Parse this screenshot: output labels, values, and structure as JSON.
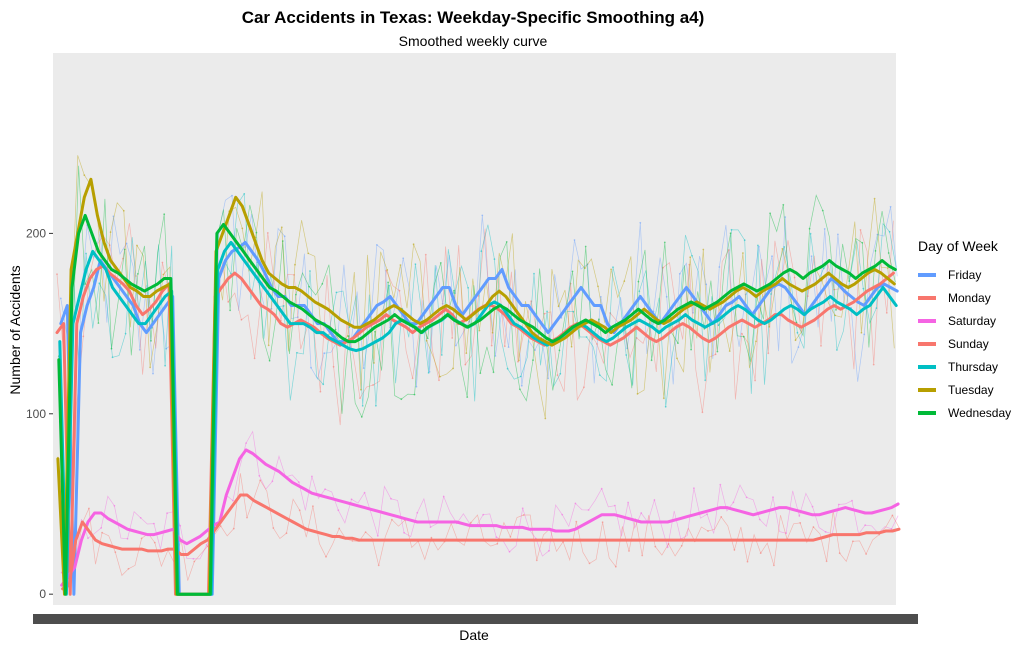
{
  "chart_data": {
    "type": "line",
    "title": "Car Accidents in Texas: Weekday-Specific Smoothing a4)",
    "subtitle": "Smoothed weekly curve",
    "xlabel": "Date",
    "ylabel": "Number of Accidents",
    "ylim": [
      -6,
      300
    ],
    "y_ticks": [
      0,
      100,
      200
    ],
    "x_tick_labels_overlapping": true,
    "grid": false,
    "background": "#EBEBEB",
    "legend": {
      "title": "Day of Week",
      "position": "right"
    },
    "num_weeks": 128,
    "series": [
      {
        "name": "Friday",
        "color": "#619CFF",
        "values": [
          150,
          160,
          0,
          145,
          160,
          170,
          185,
          180,
          175,
          170,
          165,
          160,
          150,
          145,
          150,
          155,
          160,
          165,
          0,
          0,
          0,
          0,
          0,
          0,
          175,
          185,
          190,
          192,
          195,
          190,
          185,
          178,
          170,
          165,
          165,
          160,
          160,
          160,
          155,
          150,
          150,
          145,
          140,
          140,
          140,
          145,
          150,
          155,
          160,
          162,
          165,
          160,
          155,
          150,
          150,
          155,
          160,
          165,
          170,
          170,
          160,
          155,
          160,
          165,
          170,
          175,
          175,
          180,
          170,
          165,
          160,
          160,
          155,
          150,
          145,
          150,
          155,
          160,
          165,
          170,
          165,
          160,
          160,
          150,
          145,
          150,
          155,
          160,
          165,
          160,
          155,
          150,
          155,
          160,
          165,
          170,
          165,
          160,
          155,
          150,
          155,
          160,
          162,
          165,
          160,
          155,
          160,
          165,
          170,
          172,
          170,
          165,
          160,
          155,
          160,
          165,
          170,
          175,
          172,
          168,
          165,
          162,
          160,
          165,
          170,
          172,
          170,
          168
        ]
      },
      {
        "name": "Monday",
        "color": "#F8766D",
        "values": [
          145,
          150,
          0,
          150,
          165,
          175,
          180,
          182,
          178,
          175,
          172,
          168,
          160,
          155,
          158,
          162,
          168,
          172,
          0,
          0,
          0,
          0,
          0,
          0,
          165,
          170,
          175,
          178,
          175,
          170,
          165,
          160,
          158,
          155,
          150,
          148,
          150,
          152,
          150,
          148,
          145,
          142,
          140,
          138,
          140,
          142,
          145,
          148,
          150,
          152,
          155,
          152,
          150,
          148,
          145,
          148,
          150,
          152,
          155,
          158,
          155,
          150,
          152,
          155,
          158,
          160,
          160,
          158,
          155,
          150,
          148,
          145,
          142,
          140,
          138,
          140,
          142,
          145,
          148,
          150,
          148,
          145,
          142,
          140,
          138,
          140,
          142,
          145,
          148,
          145,
          142,
          140,
          142,
          145,
          148,
          150,
          148,
          145,
          142,
          140,
          142,
          145,
          148,
          150,
          152,
          150,
          148,
          150,
          152,
          155,
          155,
          152,
          150,
          148,
          150,
          152,
          155,
          158,
          160,
          158,
          160,
          162,
          165,
          168,
          170,
          172,
          175,
          178
        ]
      },
      {
        "name": "Saturday",
        "color": "#F564E3",
        "values": [
          5,
          10,
          15,
          30,
          40,
          45,
          45,
          42,
          40,
          38,
          36,
          35,
          34,
          33,
          33,
          34,
          35,
          36,
          30,
          28,
          30,
          32,
          35,
          38,
          40,
          55,
          65,
          75,
          80,
          78,
          75,
          72,
          70,
          68,
          65,
          62,
          60,
          58,
          56,
          55,
          54,
          53,
          52,
          51,
          50,
          49,
          48,
          47,
          46,
          45,
          44,
          43,
          42,
          41,
          40,
          40,
          40,
          40,
          40,
          40,
          40,
          39,
          38,
          38,
          38,
          38,
          38,
          37,
          37,
          37,
          37,
          36,
          36,
          36,
          36,
          35,
          35,
          35,
          36,
          38,
          40,
          42,
          44,
          44,
          44,
          43,
          42,
          41,
          40,
          40,
          40,
          40,
          40,
          41,
          42,
          43,
          44,
          45,
          46,
          47,
          48,
          48,
          47,
          46,
          45,
          44,
          45,
          46,
          47,
          48,
          48,
          47,
          46,
          45,
          44,
          44,
          45,
          46,
          47,
          48,
          47,
          46,
          45,
          45,
          46,
          47,
          48,
          50
        ]
      },
      {
        "name": "Sunday",
        "color": "#F8766D",
        "values": [
          3,
          5,
          30,
          40,
          35,
          30,
          28,
          27,
          26,
          25,
          25,
          25,
          25,
          24,
          24,
          24,
          25,
          25,
          22,
          22,
          25,
          28,
          30,
          35,
          40,
          45,
          50,
          55,
          55,
          52,
          50,
          48,
          46,
          44,
          42,
          40,
          38,
          36,
          35,
          34,
          33,
          32,
          32,
          31,
          31,
          30,
          30,
          30,
          30,
          30,
          30,
          30,
          30,
          30,
          30,
          30,
          30,
          30,
          30,
          30,
          30,
          30,
          30,
          30,
          30,
          30,
          30,
          30,
          30,
          30,
          30,
          30,
          30,
          30,
          30,
          30,
          30,
          30,
          30,
          30,
          30,
          30,
          30,
          30,
          30,
          30,
          30,
          30,
          30,
          30,
          30,
          30,
          30,
          30,
          30,
          30,
          30,
          30,
          30,
          30,
          30,
          30,
          30,
          30,
          30,
          30,
          30,
          30,
          30,
          30,
          30,
          30,
          30,
          30,
          30,
          31,
          32,
          33,
          33,
          33,
          33,
          33,
          34,
          34,
          34,
          35,
          35,
          36
        ]
      },
      {
        "name": "Thursday",
        "color": "#00BFC4",
        "values": [
          140,
          0,
          150,
          165,
          180,
          190,
          185,
          180,
          170,
          165,
          160,
          155,
          150,
          150,
          155,
          160,
          165,
          168,
          0,
          0,
          0,
          0,
          0,
          0,
          180,
          190,
          195,
          190,
          185,
          180,
          175,
          170,
          165,
          160,
          155,
          150,
          150,
          150,
          148,
          145,
          145,
          142,
          140,
          138,
          136,
          135,
          136,
          138,
          140,
          142,
          145,
          150,
          152,
          150,
          148,
          145,
          148,
          150,
          152,
          155,
          152,
          150,
          148,
          150,
          155,
          160,
          162,
          160,
          155,
          150,
          148,
          145,
          142,
          140,
          138,
          140,
          142,
          145,
          148,
          150,
          148,
          145,
          142,
          140,
          142,
          145,
          148,
          150,
          152,
          150,
          148,
          145,
          148,
          150,
          152,
          155,
          152,
          150,
          148,
          150,
          152,
          155,
          158,
          160,
          158,
          155,
          152,
          150,
          152,
          155,
          158,
          160,
          158,
          155,
          158,
          160,
          162,
          165,
          162,
          160,
          158,
          155,
          158,
          160,
          165,
          170,
          165,
          160
        ]
      },
      {
        "name": "Tuesday",
        "color": "#B79F00",
        "values": [
          75,
          0,
          180,
          200,
          220,
          230,
          210,
          195,
          185,
          180,
          175,
          170,
          168,
          165,
          165,
          168,
          170,
          172,
          0,
          0,
          0,
          0,
          0,
          0,
          190,
          200,
          210,
          220,
          215,
          205,
          195,
          185,
          178,
          175,
          172,
          170,
          170,
          168,
          165,
          162,
          160,
          158,
          155,
          152,
          150,
          148,
          148,
          150,
          152,
          155,
          158,
          160,
          158,
          155,
          152,
          150,
          152,
          155,
          158,
          160,
          158,
          155,
          152,
          155,
          158,
          160,
          165,
          168,
          165,
          160,
          155,
          150,
          145,
          142,
          140,
          138,
          140,
          142,
          145,
          148,
          150,
          152,
          150,
          148,
          145,
          148,
          150,
          152,
          155,
          158,
          155,
          152,
          150,
          152,
          155,
          158,
          160,
          162,
          160,
          158,
          160,
          162,
          165,
          168,
          170,
          168,
          165,
          168,
          170,
          172,
          175,
          172,
          170,
          168,
          170,
          172,
          175,
          178,
          175,
          172,
          170,
          172,
          175,
          178,
          180,
          178,
          175,
          172
        ]
      },
      {
        "name": "Wednesday",
        "color": "#00BA38",
        "values": [
          130,
          0,
          170,
          200,
          210,
          200,
          190,
          185,
          180,
          178,
          175,
          172,
          170,
          168,
          170,
          172,
          175,
          175,
          0,
          0,
          0,
          0,
          0,
          0,
          200,
          205,
          200,
          195,
          190,
          185,
          180,
          175,
          170,
          168,
          165,
          162,
          160,
          158,
          155,
          152,
          150,
          148,
          145,
          142,
          140,
          140,
          142,
          145,
          148,
          150,
          152,
          155,
          152,
          150,
          148,
          145,
          148,
          150,
          152,
          155,
          152,
          150,
          148,
          150,
          152,
          155,
          158,
          160,
          158,
          155,
          152,
          150,
          148,
          145,
          142,
          140,
          142,
          145,
          148,
          150,
          152,
          150,
          148,
          145,
          148,
          150,
          152,
          155,
          158,
          155,
          152,
          150,
          152,
          155,
          158,
          160,
          162,
          160,
          158,
          160,
          162,
          165,
          168,
          170,
          172,
          170,
          168,
          170,
          172,
          175,
          178,
          180,
          178,
          175,
          178,
          180,
          182,
          185,
          182,
          180,
          178,
          175,
          178,
          180,
          182,
          185,
          182,
          180
        ]
      }
    ]
  }
}
